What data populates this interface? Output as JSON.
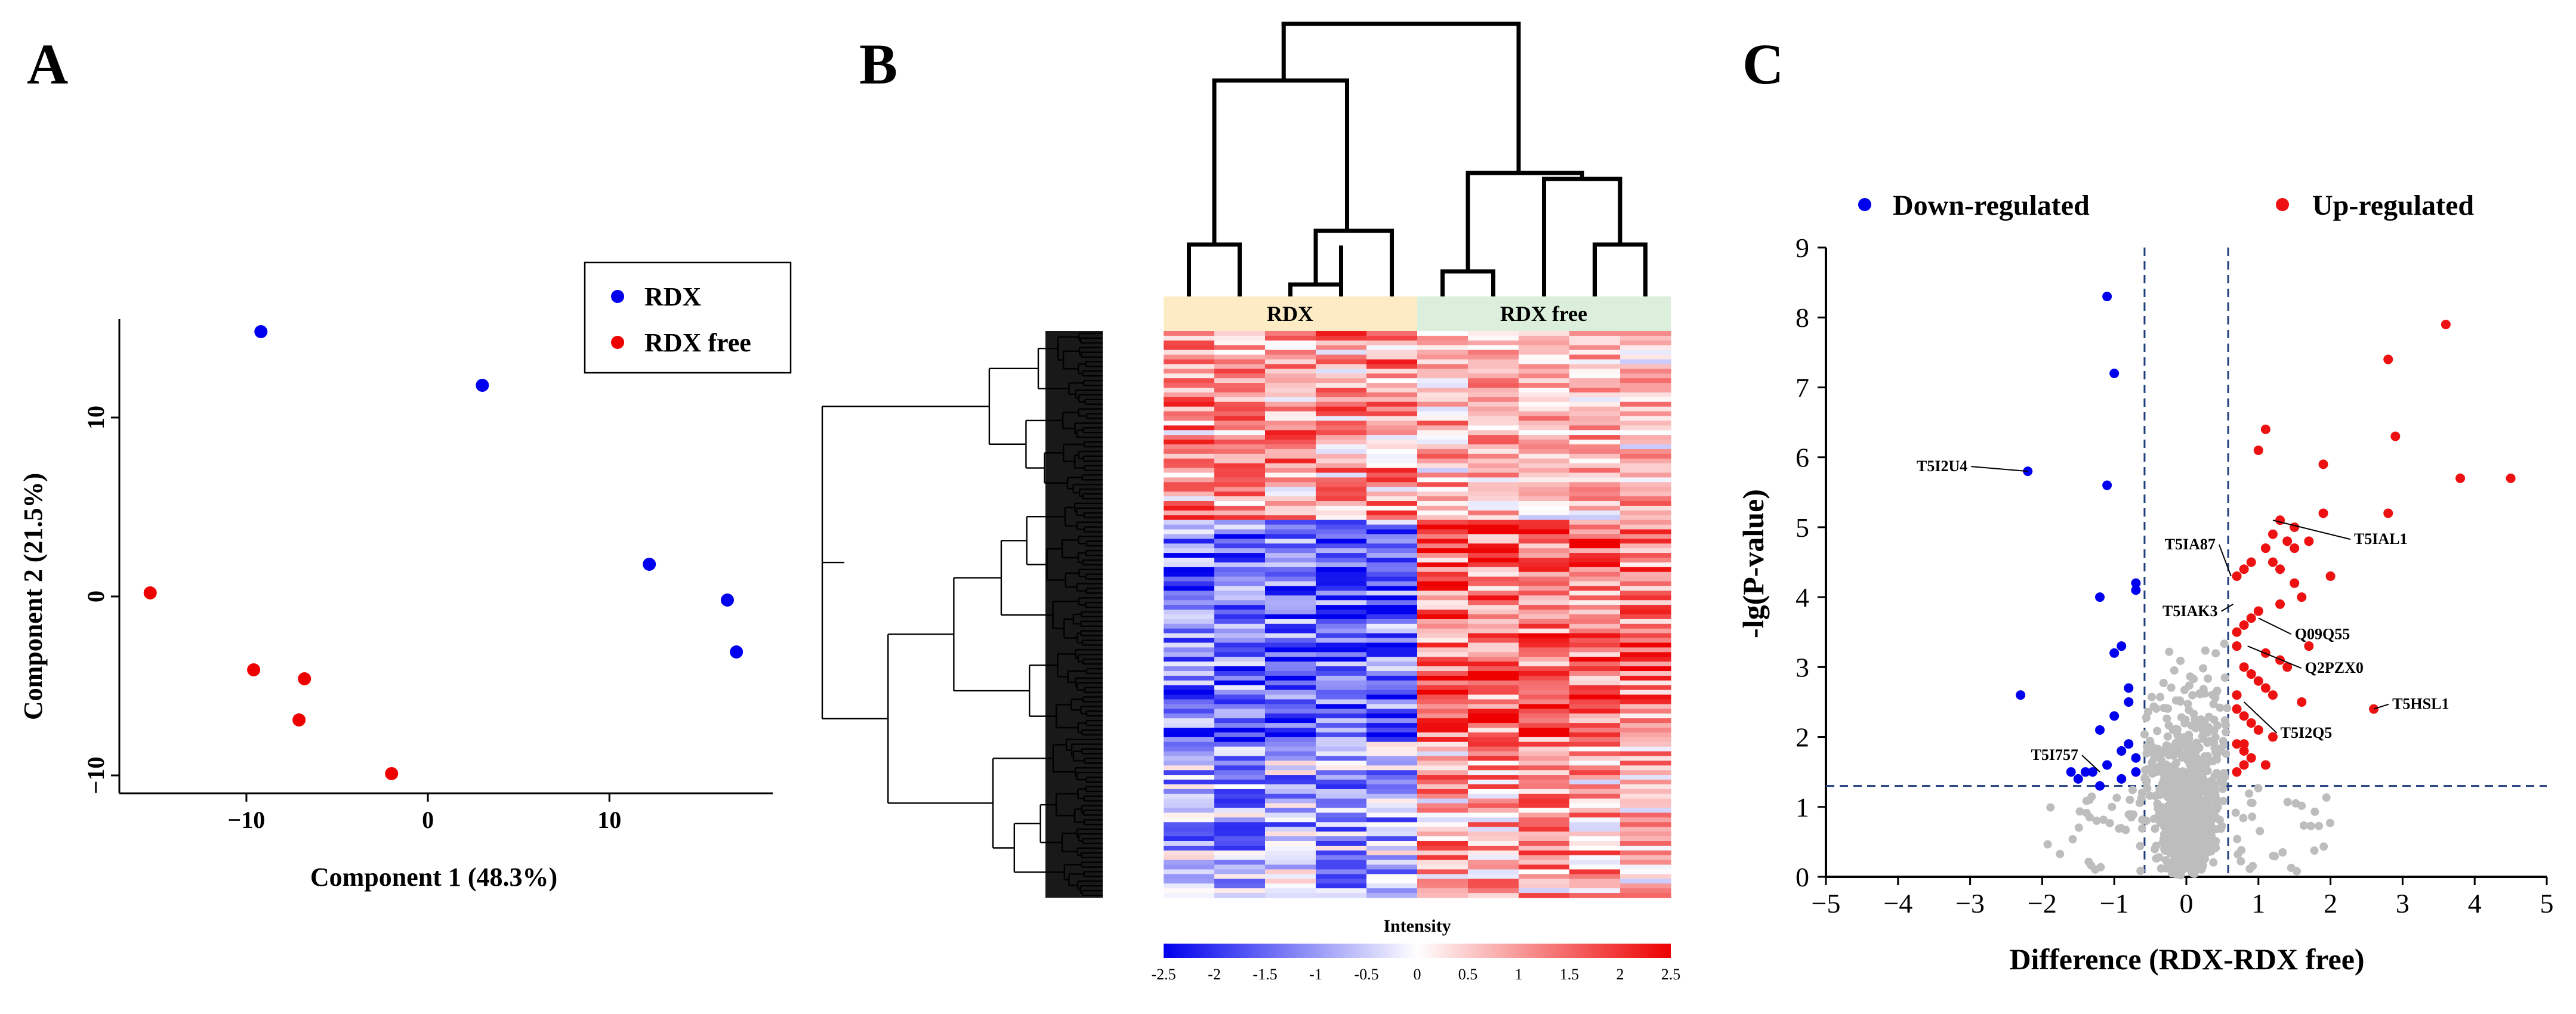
{
  "colors": {
    "rdx": "#0000ee",
    "rdxfree": "#ee0000",
    "down": "#0000ee",
    "up": "#ee1111",
    "ns": "#bdbdbd",
    "axis": "#000000",
    "threshold": "#1f3d7a",
    "rdxBand": "#fdebc6",
    "rdxFreeBand": "#dcefdc"
  },
  "chart_data": [
    {
      "panel_label": "A",
      "type": "scatter",
      "xlabel": "Component 1 (48.3%)",
      "ylabel": "Component 2 (21.5%)",
      "xlim": [
        -17,
        19
      ],
      "ylim": [
        -11,
        15.5
      ],
      "xticks": [
        "−10",
        "0",
        "10"
      ],
      "xtick_values": [
        -10,
        0,
        10
      ],
      "yticks": [
        "−10",
        "0",
        "10"
      ],
      "ytick_values": [
        -10,
        0,
        10
      ],
      "series": [
        {
          "name": "RDX",
          "color": "#0000ee",
          "x": [
            -9.2,
            3.0,
            12.2,
            16.5,
            17.0
          ],
          "y": [
            14.8,
            11.8,
            1.8,
            -0.2,
            -3.1
          ]
        },
        {
          "name": "RDX free",
          "color": "#ee0000",
          "x": [
            -15.3,
            -9.6,
            -6.8,
            -7.1,
            -2.0
          ],
          "y": [
            0.2,
            -4.1,
            -4.6,
            -6.9,
            -9.9
          ]
        }
      ],
      "legend": {
        "position": "top-right",
        "entries": [
          "RDX",
          "RDX free"
        ]
      }
    },
    {
      "panel_label": "B",
      "type": "heatmap",
      "groups": [
        "RDX",
        "RDX free"
      ],
      "n_samples": 10,
      "n_rows": 120,
      "colorbar_title": "Intensity",
      "colorbar_ticks": [
        "-2.5",
        "-2",
        "-1.5",
        "-1",
        "-0.5",
        "0",
        "0.5",
        "1",
        "1.5",
        "2",
        "2.5"
      ],
      "value_range": [
        -2.5,
        2.5
      ],
      "dendrogram_cols": true,
      "dendrogram_rows": true
    },
    {
      "panel_label": "C",
      "type": "scatter",
      "xlabel": "Difference (RDX-RDX free)",
      "ylabel": "-lg(P-value)",
      "xlim": [
        -5,
        5
      ],
      "ylim": [
        0,
        9
      ],
      "xticks": [
        "−5",
        "−4",
        "−3",
        "−2",
        "−1",
        "0",
        "1",
        "2",
        "3",
        "4",
        "5"
      ],
      "xtick_values": [
        -5,
        -4,
        -3,
        -2,
        -1,
        0,
        1,
        2,
        3,
        4,
        5
      ],
      "yticks": [
        "0",
        "1",
        "2",
        "3",
        "4",
        "5",
        "6",
        "7",
        "8",
        "9"
      ],
      "ytick_values": [
        0,
        1,
        2,
        3,
        4,
        5,
        6,
        7,
        8,
        9
      ],
      "thresholds": {
        "x": [
          -0.58,
          0.58
        ],
        "y": 1.3
      },
      "legend": {
        "position": "top",
        "entries": [
          "Down-regulated",
          "Up-regulated"
        ]
      },
      "down": {
        "x": [
          -2.2,
          -2.3,
          -1.1,
          -1.0,
          -1.4,
          -1.2,
          -0.9,
          -0.7,
          -0.7,
          -1.0,
          -0.8,
          -0.9,
          -0.7,
          -1.2,
          -1.1,
          -1.3,
          -1.2,
          -1.5,
          -1.6,
          -0.8,
          -0.7,
          -0.9,
          -1.0,
          -0.8,
          -1.1
        ],
        "y": [
          5.8,
          2.6,
          8.3,
          7.2,
          1.5,
          4.0,
          3.3,
          4.2,
          4.1,
          3.2,
          2.7,
          1.8,
          1.5,
          2.1,
          1.6,
          1.5,
          1.3,
          1.4,
          1.5,
          1.9,
          1.7,
          1.4,
          2.3,
          2.5,
          5.6
        ]
      },
      "up": {
        "x": [
          3.6,
          2.8,
          4.5,
          3.8,
          2.9,
          2.8,
          1.1,
          1.0,
          1.9,
          1.9,
          2.6,
          1.3,
          1.2,
          1.5,
          1.4,
          1.1,
          0.9,
          0.8,
          0.7,
          1.2,
          1.3,
          1.5,
          1.6,
          1.3,
          1.0,
          0.9,
          0.8,
          0.7,
          0.7,
          1.1,
          1.3,
          1.4,
          1.7,
          2.0,
          0.8,
          0.9,
          1.0,
          1.1,
          1.2,
          1.6,
          0.7,
          0.8,
          0.9,
          1.0,
          1.2,
          0.7,
          0.8,
          0.9,
          1.1,
          0.7,
          0.8,
          1.5,
          1.7,
          0.7,
          0.8
        ],
        "y": [
          7.9,
          7.4,
          5.7,
          5.7,
          6.3,
          5.2,
          6.4,
          6.1,
          5.9,
          5.2,
          2.4,
          5.1,
          4.9,
          5.0,
          4.8,
          4.7,
          4.5,
          4.4,
          4.3,
          4.5,
          4.4,
          4.2,
          4.0,
          3.9,
          3.8,
          3.7,
          3.6,
          3.5,
          3.3,
          3.2,
          3.1,
          3.0,
          3.3,
          4.3,
          3.0,
          2.9,
          2.8,
          2.7,
          2.6,
          2.5,
          2.4,
          2.3,
          2.2,
          2.1,
          2.0,
          1.9,
          1.8,
          1.7,
          1.6,
          1.5,
          1.6,
          4.7,
          4.8,
          2.6,
          1.9
        ]
      },
      "annotations": [
        {
          "label": "T5I2U4",
          "x": -2.2,
          "y": 5.8
        },
        {
          "label": "T5IAL1",
          "x": 1.2,
          "y": 5.1
        },
        {
          "label": "T5IA87",
          "x": 0.62,
          "y": 4.3
        },
        {
          "label": "T5IAK3",
          "x": 0.65,
          "y": 3.9
        },
        {
          "label": "Q09Q55",
          "x": 1.0,
          "y": 3.7
        },
        {
          "label": "Q2PZX0",
          "x": 0.85,
          "y": 3.3
        },
        {
          "label": "T5HSL1",
          "x": 2.6,
          "y": 2.4
        },
        {
          "label": "T5I2Q5",
          "x": 0.8,
          "y": 2.5
        },
        {
          "label": "T5I757",
          "x": -1.2,
          "y": 1.5
        }
      ]
    }
  ]
}
